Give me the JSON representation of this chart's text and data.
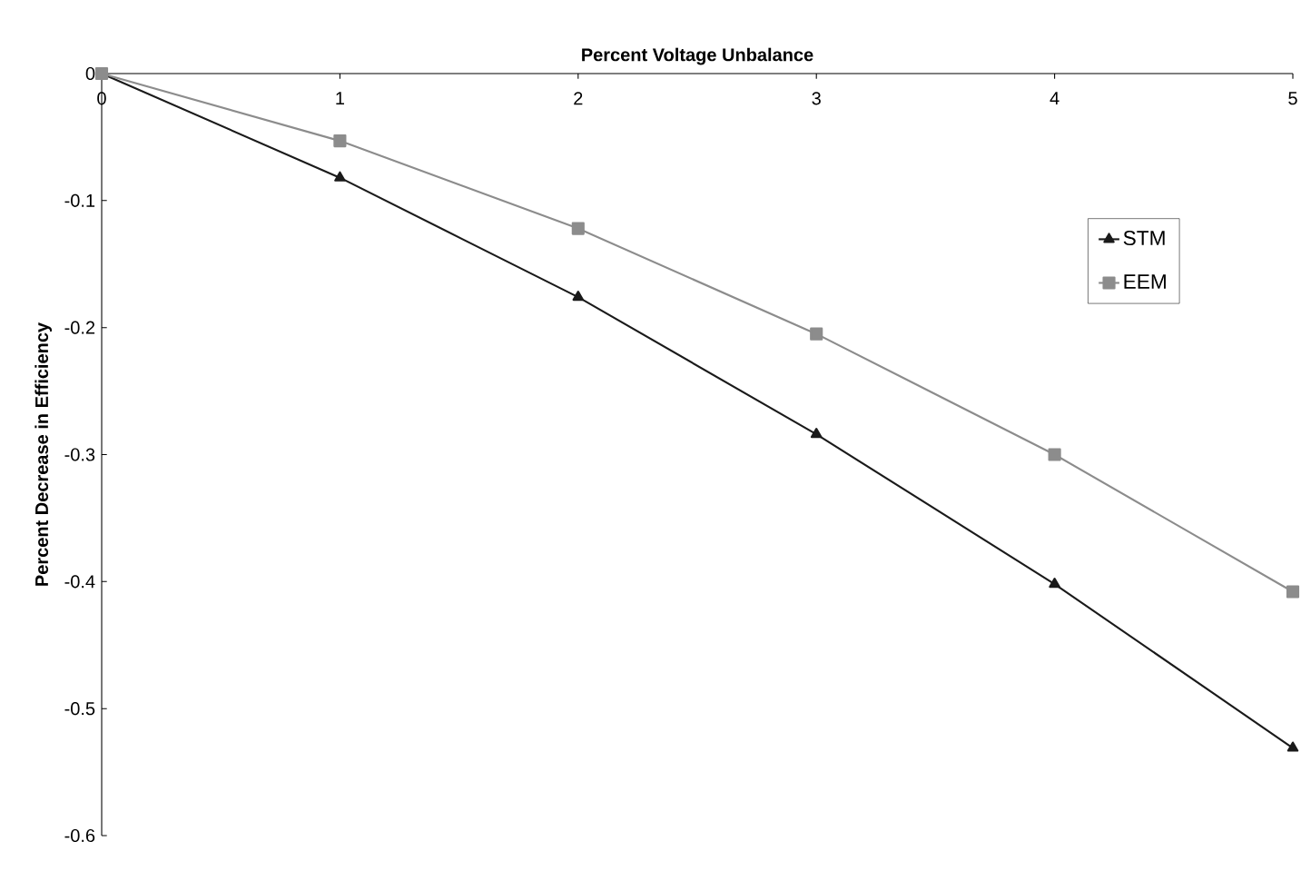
{
  "chart_data": {
    "type": "line",
    "xlabel": "Percent Voltage Unbalance",
    "ylabel": "Percent Decrease in Efficiency",
    "x": [
      0,
      1,
      2,
      3,
      4,
      5
    ],
    "series": [
      {
        "name": "STM",
        "color": "#1a1a1a",
        "marker": "triangle",
        "values": [
          0,
          -0.082,
          -0.176,
          -0.284,
          -0.402,
          -0.531
        ]
      },
      {
        "name": "EEM",
        "color": "#8c8c8c",
        "marker": "square",
        "values": [
          0,
          -0.053,
          -0.122,
          -0.205,
          -0.3,
          -0.408
        ]
      }
    ],
    "xlim": [
      0,
      5
    ],
    "xticks": [
      0,
      1,
      2,
      3,
      4,
      5
    ],
    "ylim": [
      -0.6,
      0
    ],
    "yticks": [
      -0.6,
      -0.5,
      -0.4,
      -0.3,
      -0.2,
      -0.1,
      0
    ],
    "grid": false,
    "legend": "top right",
    "line_style": "solid"
  }
}
